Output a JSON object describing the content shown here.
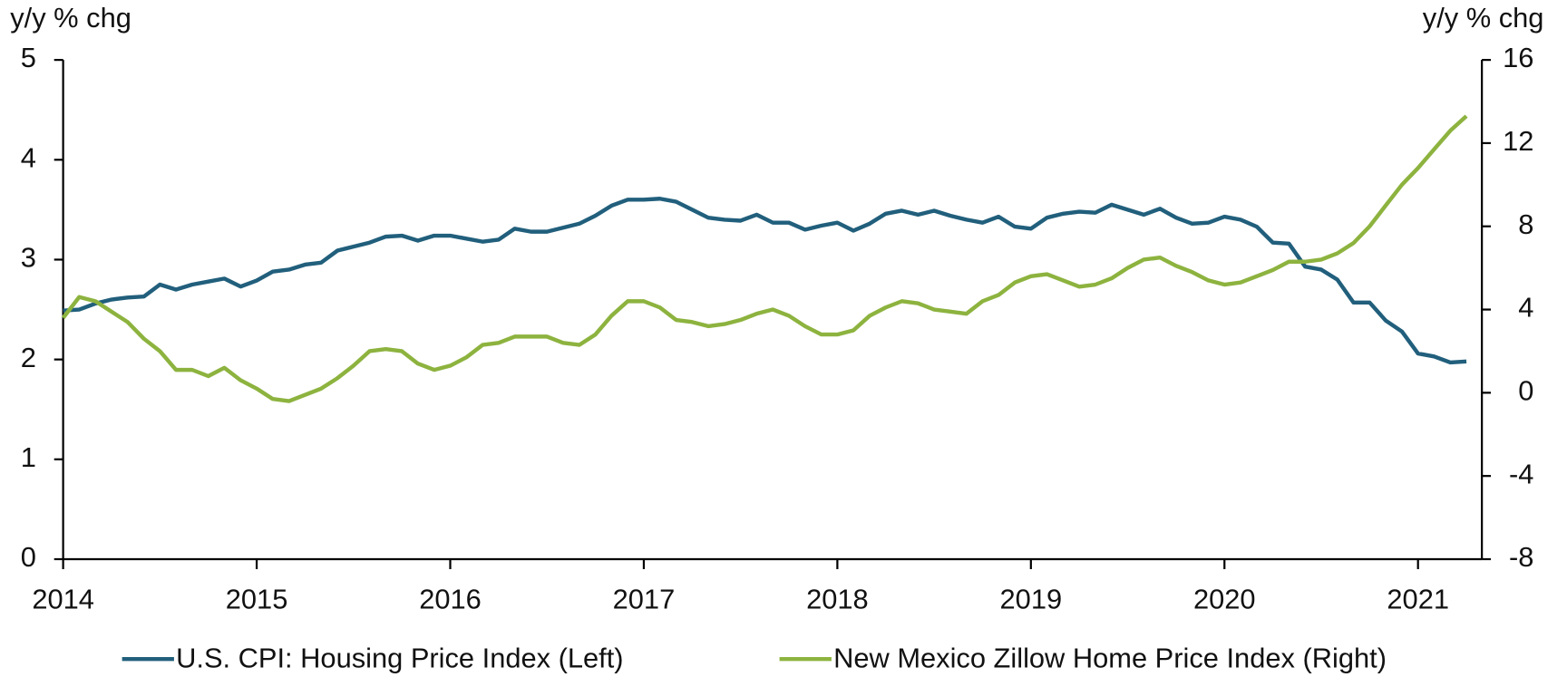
{
  "chart_data": {
    "type": "line",
    "y_label": "y/y % chg",
    "y2_label": "y/y % chg",
    "x": [
      2014,
      2014.083,
      2014.167,
      2014.25,
      2014.333,
      2014.417,
      2014.5,
      2014.583,
      2014.667,
      2014.75,
      2014.833,
      2014.917,
      2015,
      2015.083,
      2015.167,
      2015.25,
      2015.333,
      2015.417,
      2015.5,
      2015.583,
      2015.667,
      2015.75,
      2015.833,
      2015.917,
      2016,
      2016.083,
      2016.167,
      2016.25,
      2016.333,
      2016.417,
      2016.5,
      2016.583,
      2016.667,
      2016.75,
      2016.833,
      2016.917,
      2017,
      2017.083,
      2017.167,
      2017.25,
      2017.333,
      2017.417,
      2017.5,
      2017.583,
      2017.667,
      2017.75,
      2017.833,
      2017.917,
      2018,
      2018.083,
      2018.167,
      2018.25,
      2018.333,
      2018.417,
      2018.5,
      2018.583,
      2018.667,
      2018.75,
      2018.833,
      2018.917,
      2019,
      2019.083,
      2019.167,
      2019.25,
      2019.333,
      2019.417,
      2019.5,
      2019.583,
      2019.667,
      2019.75,
      2019.833,
      2019.917,
      2020,
      2020.083,
      2020.167,
      2020.25,
      2020.333,
      2020.417,
      2020.5,
      2020.583,
      2020.667,
      2020.75,
      2020.833,
      2020.917,
      2021,
      2021.083,
      2021.167,
      2021.25
    ],
    "series": [
      {
        "name": "U.S. CPI: Housing Price Index (Left)",
        "color": "#215f7c",
        "axis": "y",
        "values": [
          2.49,
          2.5,
          2.56,
          2.6,
          2.62,
          2.63,
          2.75,
          2.7,
          2.75,
          2.78,
          2.81,
          2.73,
          2.79,
          2.88,
          2.9,
          2.95,
          2.97,
          3.09,
          3.13,
          3.17,
          3.23,
          3.24,
          3.19,
          3.24,
          3.24,
          3.21,
          3.18,
          3.2,
          3.31,
          3.28,
          3.28,
          3.32,
          3.36,
          3.44,
          3.54,
          3.6,
          3.6,
          3.61,
          3.58,
          3.5,
          3.42,
          3.4,
          3.39,
          3.45,
          3.37,
          3.37,
          3.3,
          3.34,
          3.37,
          3.29,
          3.36,
          3.46,
          3.49,
          3.45,
          3.49,
          3.44,
          3.4,
          3.37,
          3.43,
          3.33,
          3.31,
          3.42,
          3.46,
          3.48,
          3.47,
          3.55,
          3.5,
          3.45,
          3.51,
          3.42,
          3.36,
          3.37,
          3.43,
          3.4,
          3.33,
          3.17,
          3.16,
          2.93,
          2.9,
          2.8,
          2.57,
          2.57,
          2.39,
          2.28,
          2.06,
          2.03,
          1.97,
          1.98
        ]
      },
      {
        "name": "New Mexico Zillow Home Price Index (Right)",
        "color": "#8db33f",
        "axis": "y2",
        "values": [
          3.6,
          4.6,
          4.4,
          3.9,
          3.4,
          2.6,
          2.0,
          1.1,
          1.1,
          0.8,
          1.2,
          0.6,
          0.2,
          -0.3,
          -0.4,
          -0.1,
          0.2,
          0.7,
          1.3,
          2.0,
          2.1,
          2.0,
          1.4,
          1.1,
          1.3,
          1.7,
          2.3,
          2.4,
          2.7,
          2.7,
          2.7,
          2.4,
          2.3,
          2.8,
          3.7,
          4.4,
          4.4,
          4.1,
          3.5,
          3.4,
          3.2,
          3.3,
          3.5,
          3.8,
          4.0,
          3.7,
          3.2,
          2.8,
          2.8,
          3.0,
          3.7,
          4.1,
          4.4,
          4.3,
          4.0,
          3.9,
          3.8,
          4.4,
          4.7,
          5.3,
          5.6,
          5.7,
          5.4,
          5.1,
          5.2,
          5.5,
          6.0,
          6.4,
          6.5,
          6.1,
          5.8,
          5.4,
          5.2,
          5.3,
          5.6,
          5.9,
          6.3,
          6.3,
          6.4,
          6.7,
          7.2,
          8.0,
          9.0,
          10.0,
          10.8,
          11.7,
          12.6,
          13.3
        ]
      }
    ],
    "xlim": [
      2014,
      2021.33
    ],
    "xticks": [
      2014,
      2015,
      2016,
      2017,
      2018,
      2019,
      2020,
      2021
    ],
    "ylim": [
      0,
      5
    ],
    "yticks": [
      0,
      1,
      2,
      3,
      4,
      5
    ],
    "y2lim": [
      -8,
      16
    ],
    "y2ticks": [
      -8,
      -4,
      0,
      4,
      8,
      12,
      16
    ],
    "legend": "bottom"
  }
}
